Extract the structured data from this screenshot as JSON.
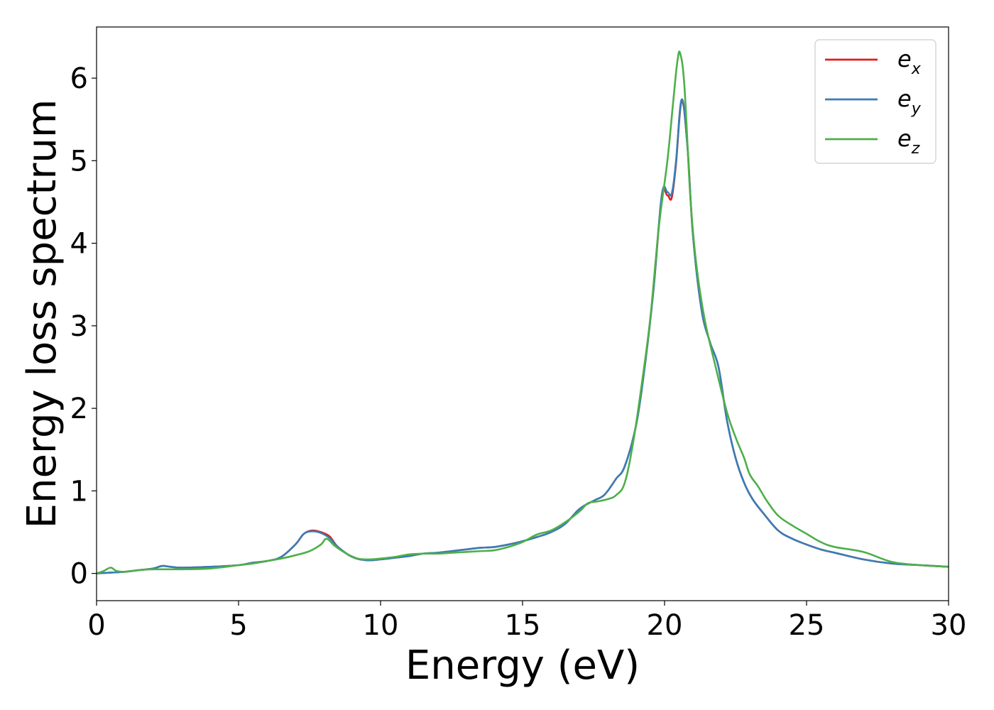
{
  "chart_data": {
    "type": "line",
    "title": "",
    "xlabel": "Energy (eV)",
    "ylabel": "Energy loss spectrum",
    "xlim": [
      0,
      30
    ],
    "ylim": [
      -0.33,
      6.62
    ],
    "xticks": [
      0,
      5,
      10,
      15,
      20,
      25,
      30
    ],
    "yticks": [
      0,
      1,
      2,
      3,
      4,
      5,
      6
    ],
    "xtick_labels": [
      "0",
      "5",
      "10",
      "15",
      "20",
      "25",
      "30"
    ],
    "ytick_labels": [
      "0",
      "1",
      "2",
      "3",
      "4",
      "5",
      "6"
    ],
    "grid": false,
    "legend_position": "top-right",
    "series": [
      {
        "name": "e_x",
        "label_main": "e",
        "label_sub": "x",
        "color": "#e41a1c",
        "x": [
          0,
          0.5,
          1,
          1.5,
          2,
          2.3,
          2.6,
          3,
          4,
          5,
          5.5,
          6,
          6.5,
          7,
          7.3,
          7.6,
          7.9,
          8.2,
          8.5,
          9,
          9.5,
          10,
          10.5,
          11,
          11.5,
          12,
          12.5,
          13,
          13.5,
          14,
          14.5,
          15,
          15.5,
          16,
          16.5,
          17,
          17.5,
          17.8,
          18,
          18.3,
          18.6,
          19,
          19.3,
          19.6,
          19.9,
          20.1,
          20.25,
          20.4,
          20.6,
          20.8,
          21,
          21.3,
          21.6,
          21.9,
          22.2,
          22.5,
          22.8,
          23.1,
          23.5,
          24,
          24.5,
          25,
          25.5,
          26,
          27,
          28,
          29,
          30
        ],
        "y": [
          0,
          0.01,
          0.02,
          0.04,
          0.06,
          0.09,
          0.08,
          0.07,
          0.08,
          0.1,
          0.13,
          0.15,
          0.2,
          0.35,
          0.48,
          0.52,
          0.5,
          0.45,
          0.32,
          0.2,
          0.16,
          0.17,
          0.19,
          0.21,
          0.24,
          0.25,
          0.27,
          0.29,
          0.31,
          0.32,
          0.35,
          0.39,
          0.44,
          0.5,
          0.6,
          0.78,
          0.88,
          0.93,
          1.0,
          1.15,
          1.3,
          1.8,
          2.5,
          3.4,
          4.55,
          4.58,
          4.55,
          4.95,
          5.72,
          5.2,
          4.1,
          3.2,
          2.8,
          2.5,
          1.85,
          1.4,
          1.1,
          0.9,
          0.72,
          0.52,
          0.42,
          0.35,
          0.29,
          0.25,
          0.17,
          0.12,
          0.1,
          0.08
        ]
      },
      {
        "name": "e_y",
        "label_main": "e",
        "label_sub": "y",
        "color": "#377eb8",
        "x": [
          0,
          0.5,
          1,
          1.5,
          2,
          2.3,
          2.6,
          3,
          4,
          5,
          5.5,
          6,
          6.5,
          7,
          7.3,
          7.6,
          7.9,
          8.2,
          8.5,
          9,
          9.5,
          10,
          10.5,
          11,
          11.5,
          12,
          12.5,
          13,
          13.5,
          14,
          14.5,
          15,
          15.5,
          16,
          16.5,
          17,
          17.5,
          17.8,
          18,
          18.3,
          18.6,
          19,
          19.3,
          19.6,
          19.9,
          20.1,
          20.25,
          20.4,
          20.6,
          20.8,
          21,
          21.3,
          21.6,
          21.9,
          22.2,
          22.5,
          22.8,
          23.1,
          23.5,
          24,
          24.5,
          25,
          25.5,
          26,
          27,
          28,
          29,
          30
        ],
        "y": [
          0,
          0.01,
          0.02,
          0.04,
          0.06,
          0.09,
          0.08,
          0.07,
          0.08,
          0.1,
          0.13,
          0.15,
          0.2,
          0.35,
          0.48,
          0.51,
          0.49,
          0.43,
          0.32,
          0.2,
          0.16,
          0.17,
          0.19,
          0.21,
          0.24,
          0.25,
          0.27,
          0.29,
          0.31,
          0.32,
          0.35,
          0.39,
          0.44,
          0.5,
          0.6,
          0.78,
          0.88,
          0.93,
          1.0,
          1.15,
          1.3,
          1.8,
          2.5,
          3.4,
          4.58,
          4.62,
          4.6,
          4.98,
          5.74,
          5.2,
          4.1,
          3.2,
          2.8,
          2.5,
          1.85,
          1.4,
          1.1,
          0.9,
          0.72,
          0.52,
          0.42,
          0.35,
          0.29,
          0.25,
          0.17,
          0.12,
          0.1,
          0.08
        ]
      },
      {
        "name": "e_z",
        "label_main": "e",
        "label_sub": "z",
        "color": "#4daf4a",
        "x": [
          0,
          0.25,
          0.5,
          0.7,
          1,
          1.5,
          2,
          3,
          4,
          5,
          5.5,
          6,
          6.5,
          7,
          7.5,
          7.9,
          8.1,
          8.4,
          8.8,
          9.2,
          9.6,
          10,
          10.5,
          11,
          11.5,
          12,
          12.5,
          13,
          13.5,
          14,
          14.5,
          15,
          15.5,
          16,
          16.5,
          17,
          17.3,
          17.6,
          18,
          18.3,
          18.6,
          18.9,
          19.2,
          19.5,
          19.8,
          20.1,
          20.3,
          20.45,
          20.55,
          20.7,
          20.9,
          21.1,
          21.4,
          21.8,
          22.2,
          22.5,
          22.8,
          23,
          23.3,
          23.6,
          24,
          24.5,
          25,
          25.5,
          26,
          27,
          28,
          29,
          30
        ],
        "y": [
          0,
          0.03,
          0.07,
          0.03,
          0.02,
          0.04,
          0.05,
          0.05,
          0.06,
          0.1,
          0.12,
          0.15,
          0.18,
          0.22,
          0.27,
          0.35,
          0.42,
          0.33,
          0.24,
          0.18,
          0.17,
          0.18,
          0.2,
          0.23,
          0.24,
          0.24,
          0.25,
          0.26,
          0.27,
          0.28,
          0.32,
          0.38,
          0.47,
          0.52,
          0.62,
          0.75,
          0.85,
          0.87,
          0.9,
          0.95,
          1.1,
          1.6,
          2.3,
          3.1,
          4.2,
          5.0,
          5.7,
          6.2,
          6.3,
          5.9,
          4.6,
          3.8,
          3.1,
          2.5,
          1.95,
          1.65,
          1.4,
          1.2,
          1.05,
          0.88,
          0.7,
          0.58,
          0.48,
          0.38,
          0.32,
          0.26,
          0.14,
          0.1,
          0.08
        ]
      }
    ]
  }
}
